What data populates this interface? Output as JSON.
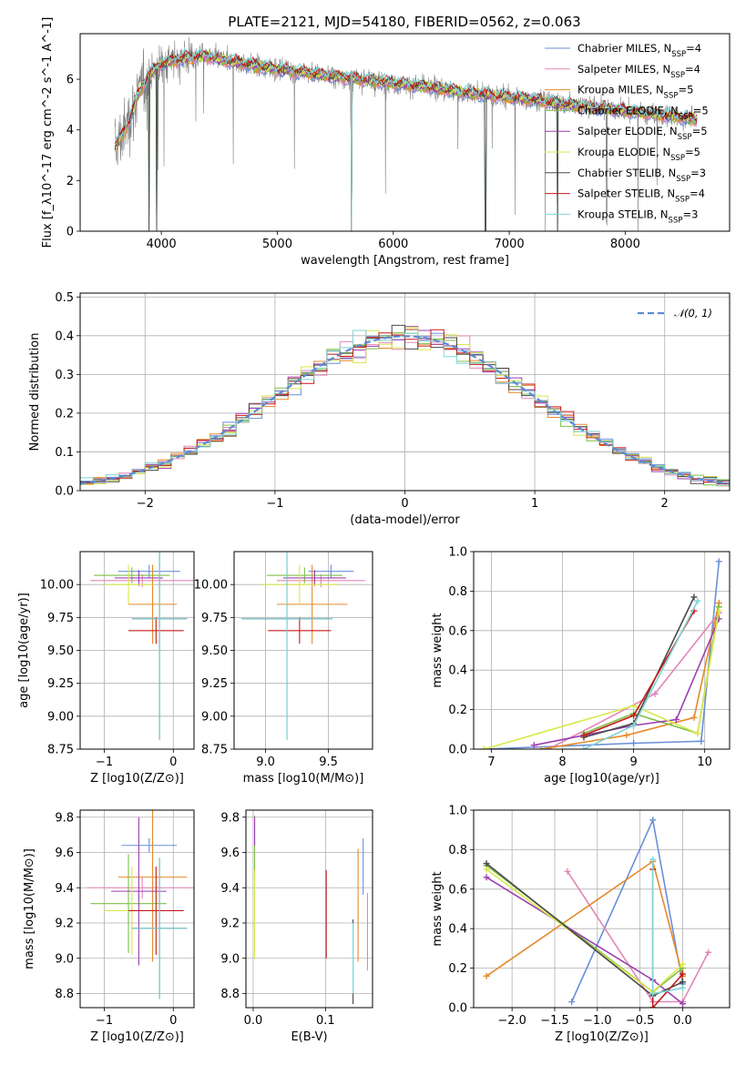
{
  "figure": {
    "title": "PLATE=2121, MJD=54180, FIBERID=0562, z=0.063"
  },
  "colors": {
    "grid": "#b0b0b0",
    "data": "#808080",
    "normal_line": "#5b8ad6"
  },
  "chart_data": [
    {
      "id": "spectrum",
      "type": "line",
      "title": "PLATE=2121, MJD=54180, FIBERID=0562, z=0.063",
      "xlabel": "wavelength [Angstrom, rest frame]",
      "ylabel": "Flux [f_λ10^-17 erg cm^-2 s^-1 A^-1]",
      "xlim": [
        3300,
        8900
      ],
      "ylim": [
        0,
        7.8
      ],
      "xticks": [
        4000,
        5000,
        6000,
        7000,
        8000
      ],
      "yticks": [
        0,
        2,
        4,
        6
      ],
      "grid": false,
      "legend_position": "top-right",
      "data_range": [
        3600,
        8620
      ],
      "continuum": [
        [
          3600,
          3.3
        ],
        [
          3700,
          4.1
        ],
        [
          3800,
          5.4
        ],
        [
          3900,
          6.2
        ],
        [
          4000,
          6.6
        ],
        [
          4200,
          6.85
        ],
        [
          4400,
          6.9
        ],
        [
          4600,
          6.7
        ],
        [
          4800,
          6.55
        ],
        [
          5000,
          6.4
        ],
        [
          5200,
          6.3
        ],
        [
          5500,
          6.1
        ],
        [
          5800,
          5.95
        ],
        [
          6000,
          5.85
        ],
        [
          6300,
          5.7
        ],
        [
          6600,
          5.5
        ],
        [
          6900,
          5.35
        ],
        [
          7200,
          5.2
        ],
        [
          7500,
          5.0
        ],
        [
          7800,
          4.85
        ],
        [
          8100,
          4.7
        ],
        [
          8400,
          4.55
        ],
        [
          8620,
          4.4
        ]
      ],
      "series": [
        {
          "name": "Chabrier MILES",
          "nssp": "4",
          "color": "#6a8fd8"
        },
        {
          "name": "Salpeter MILES",
          "nssp": "4",
          "color": "#e087b8"
        },
        {
          "name": "Kroupa MILES",
          "nssp": "5",
          "color": "#e58a2a"
        },
        {
          "name": "Chabrier ELODIE",
          "nssp": "5",
          "color": "#7fbf45"
        },
        {
          "name": "Salpeter ELODIE",
          "nssp": "5",
          "color": "#9b3fb0"
        },
        {
          "name": "Kroupa ELODIE",
          "nssp": "5",
          "color": "#d8e84a"
        },
        {
          "name": "Chabrier STELIB",
          "nssp": "3",
          "color": "#4a4a4a"
        },
        {
          "name": "Salpeter STELIB",
          "nssp": "4",
          "color": "#c81818"
        },
        {
          "name": "Kroupa STELIB",
          "nssp": "3",
          "color": "#7ed6d8"
        }
      ]
    },
    {
      "id": "residuals",
      "type": "histogram",
      "xlabel": "(data-model)/error",
      "ylabel": "Normed distribution",
      "xlim": [
        -2.5,
        2.5
      ],
      "ylim": [
        0,
        0.51
      ],
      "xticks": [
        -2,
        -1,
        0,
        1,
        2
      ],
      "yticks": [
        0.0,
        0.1,
        0.2,
        0.3,
        0.4,
        0.5
      ],
      "grid": true,
      "bin_width": 0.1,
      "legend_position": "top-right",
      "reference": {
        "name": "𝒩(0, 1)",
        "mean": 0,
        "sigma": 1,
        "style": "dashed"
      }
    },
    {
      "id": "age_vs_Z",
      "type": "errorbar",
      "xlabel": "Z [log10(Z/Z⊙)]",
      "ylabel": "age [log10(age/yr)]",
      "xlim": [
        -1.35,
        0.3
      ],
      "ylim": [
        8.75,
        10.25
      ],
      "xticks": [
        -1,
        0
      ],
      "yticks": [
        8.75,
        9.0,
        9.25,
        9.5,
        9.75,
        10.0
      ],
      "grid": true,
      "points": [
        {
          "x": -0.35,
          "xerr": 0.45,
          "y": 10.1,
          "yerr": 0.05
        },
        {
          "x": -0.45,
          "xerr": 0.75,
          "y": 10.03,
          "yerr": 0.05
        },
        {
          "x": -0.3,
          "xerr": 0.35,
          "y": 9.85,
          "yerr": 0.3
        },
        {
          "x": -0.6,
          "xerr": 0.55,
          "y": 10.07,
          "yerr": 0.06
        },
        {
          "x": -0.5,
          "xerr": 0.35,
          "y": 10.05,
          "yerr": 0.06
        },
        {
          "x": -0.65,
          "xerr": 0.35,
          "y": 10.0,
          "yerr": 0.15
        },
        {
          "x": -0.2,
          "xerr": 0.4,
          "y": 9.74,
          "yerr": 0.92
        },
        {
          "x": -0.25,
          "xerr": 0.4,
          "y": 9.65,
          "yerr": 0.1
        },
        {
          "x": -0.2,
          "xerr": 0.4,
          "y": 9.74,
          "yerr": 0.92
        }
      ]
    },
    {
      "id": "age_vs_mass",
      "type": "errorbar",
      "xlabel": "mass [log10(M/M⊙)]",
      "ylabel": "",
      "xlim": [
        8.75,
        9.85
      ],
      "ylim": [
        8.75,
        10.25
      ],
      "xticks": [
        9.0,
        9.5
      ],
      "yticks": [
        8.75,
        9.0,
        9.25,
        9.5,
        9.75,
        10.0
      ],
      "grid": true,
      "points": [
        {
          "x": 9.52,
          "xerr": 0.18,
          "y": 10.1,
          "yerr": 0.05
        },
        {
          "x": 9.44,
          "xerr": 0.35,
          "y": 10.03,
          "yerr": 0.05
        },
        {
          "x": 9.37,
          "xerr": 0.28,
          "y": 9.85,
          "yerr": 0.3
        },
        {
          "x": 9.31,
          "xerr": 0.3,
          "y": 10.07,
          "yerr": 0.06
        },
        {
          "x": 9.39,
          "xerr": 0.25,
          "y": 10.05,
          "yerr": 0.06
        },
        {
          "x": 9.27,
          "xerr": 0.3,
          "y": 10.0,
          "yerr": 0.15
        },
        {
          "x": 9.17,
          "xerr": 0.36,
          "y": 9.74,
          "yerr": 0.92
        },
        {
          "x": 9.27,
          "xerr": 0.25,
          "y": 9.65,
          "yerr": 0.1
        },
        {
          "x": 9.17,
          "xerr": 0.36,
          "y": 9.74,
          "yerr": 0.92
        }
      ]
    },
    {
      "id": "weight_vs_age",
      "type": "line",
      "xlabel": "age [log10(age/yr)]",
      "ylabel": "mass weight",
      "xlim": [
        6.75,
        10.35
      ],
      "ylim": [
        0,
        1.0
      ],
      "xticks": [
        7,
        8,
        9,
        10
      ],
      "yticks": [
        0.0,
        0.2,
        0.4,
        0.6,
        0.8,
        1.0
      ],
      "grid": true,
      "lines": [
        {
          "points": [
            [
              6.9,
              0.0
            ],
            [
              9.0,
              0.03
            ],
            [
              9.95,
              0.04
            ],
            [
              10.2,
              0.95
            ]
          ]
        },
        {
          "points": [
            [
              7.8,
              0.0
            ],
            [
              9.3,
              0.28
            ],
            [
              10.2,
              0.69
            ]
          ]
        },
        {
          "points": [
            [
              7.7,
              0.0
            ],
            [
              8.9,
              0.07
            ],
            [
              9.85,
              0.16
            ],
            [
              10.2,
              0.74
            ]
          ]
        },
        {
          "points": [
            [
              8.3,
              0.08
            ],
            [
              9.0,
              0.18
            ],
            [
              9.9,
              0.08
            ],
            [
              10.2,
              0.72
            ]
          ]
        },
        {
          "points": [
            [
              7.6,
              0.02
            ],
            [
              9.0,
              0.12
            ],
            [
              9.6,
              0.15
            ],
            [
              10.2,
              0.66
            ]
          ]
        },
        {
          "points": [
            [
              6.9,
              0.0
            ],
            [
              9.0,
              0.22
            ],
            [
              9.9,
              0.08
            ],
            [
              10.2,
              0.7
            ]
          ]
        },
        {
          "points": [
            [
              8.3,
              0.06
            ],
            [
              9.0,
              0.13
            ],
            [
              9.85,
              0.77
            ]
          ]
        },
        {
          "points": [
            [
              8.3,
              0.07
            ],
            [
              9.0,
              0.17
            ],
            [
              9.85,
              0.7
            ]
          ]
        },
        {
          "points": [
            [
              8.3,
              0.0
            ],
            [
              9.0,
              0.12
            ],
            [
              9.9,
              0.75
            ]
          ]
        }
      ]
    },
    {
      "id": "mass_vs_Z",
      "type": "errorbar",
      "xlabel": "Z [log10(Z/Z⊙)]",
      "ylabel": "mass [log10(M/M⊙)]",
      "xlim": [
        -1.35,
        0.3
      ],
      "ylim": [
        8.72,
        9.84
      ],
      "xticks": [
        -1,
        0
      ],
      "yticks": [
        8.8,
        9.0,
        9.2,
        9.4,
        9.6,
        9.8
      ],
      "grid": true,
      "points": [
        {
          "x": -0.35,
          "xerr": 0.4,
          "y": 9.64,
          "yerr": 0.04
        },
        {
          "x": -0.45,
          "xerr": 0.8,
          "y": 9.4,
          "yerr": 0.06
        },
        {
          "x": -0.3,
          "xerr": 0.5,
          "y": 9.46,
          "yerr": 0.48
        },
        {
          "x": -0.65,
          "xerr": 0.55,
          "y": 9.31,
          "yerr": 0.28
        },
        {
          "x": -0.5,
          "xerr": 0.4,
          "y": 9.38,
          "yerr": 0.42
        },
        {
          "x": -0.6,
          "xerr": 0.4,
          "y": 9.27,
          "yerr": 0.25
        },
        {
          "x": -0.2,
          "xerr": 0.4,
          "y": 9.17,
          "yerr": 0.4
        },
        {
          "x": -0.25,
          "xerr": 0.4,
          "y": 9.27,
          "yerr": 0.25
        },
        {
          "x": -0.2,
          "xerr": 0.4,
          "y": 9.17,
          "yerr": 0.4
        }
      ]
    },
    {
      "id": "mass_vs_EBV",
      "type": "errorbar",
      "xlabel": "E(B-V)",
      "ylabel": "",
      "xlim": [
        -0.01,
        0.165
      ],
      "ylim": [
        8.72,
        9.84
      ],
      "xticks": [
        0.0,
        0.1
      ],
      "yticks": [
        8.8,
        9.0,
        9.2,
        9.4,
        9.6,
        9.8
      ],
      "grid": true,
      "points": [
        {
          "x": 0.152,
          "y": 9.52,
          "yerr": 0.16
        },
        {
          "x": 0.158,
          "y": 9.15,
          "yerr": 0.22
        },
        {
          "x": 0.145,
          "y": 9.3,
          "yerr": 0.32
        },
        {
          "x": 0.002,
          "y": 9.63,
          "yerr": 0.18
        },
        {
          "x": 0.002,
          "y": 9.72,
          "yerr": 0.08
        },
        {
          "x": 0.002,
          "y": 9.25,
          "yerr": 0.25
        },
        {
          "x": 0.138,
          "y": 8.98,
          "yerr": 0.24
        },
        {
          "x": 0.101,
          "y": 9.25,
          "yerr": 0.25
        },
        {
          "x": 0.138,
          "y": 9.0,
          "yerr": 0.2
        }
      ]
    },
    {
      "id": "weight_vs_Z",
      "type": "line",
      "xlabel": "Z [log10(Z/Z⊙)]",
      "ylabel": "mass weight",
      "xlim": [
        -2.45,
        0.55
      ],
      "ylim": [
        0,
        1.0
      ],
      "xticks": [
        -2.0,
        -1.5,
        -1.0,
        -0.5,
        0.0
      ],
      "yticks": [
        0.0,
        0.2,
        0.4,
        0.6,
        0.8,
        1.0
      ],
      "grid": true,
      "lines": [
        {
          "points": [
            [
              -1.3,
              0.03
            ],
            [
              -0.35,
              0.95
            ],
            [
              0.0,
              0.12
            ]
          ]
        },
        {
          "points": [
            [
              -1.35,
              0.69
            ],
            [
              -0.35,
              0.03
            ],
            [
              0.0,
              0.03
            ],
            [
              0.3,
              0.28
            ]
          ]
        },
        {
          "points": [
            [
              -2.3,
              0.16
            ],
            [
              -0.35,
              0.74
            ],
            [
              0.0,
              0.16
            ]
          ]
        },
        {
          "points": [
            [
              -2.3,
              0.72
            ],
            [
              -0.35,
              0.08
            ],
            [
              0.0,
              0.2
            ]
          ]
        },
        {
          "points": [
            [
              -2.3,
              0.66
            ],
            [
              -0.35,
              0.14
            ],
            [
              0.0,
              0.02
            ]
          ]
        },
        {
          "points": [
            [
              -2.3,
              0.7
            ],
            [
              -0.35,
              0.08
            ],
            [
              0.0,
              0.22
            ]
          ]
        },
        {
          "points": [
            [
              -2.3,
              0.73
            ],
            [
              -0.35,
              0.06
            ],
            [
              0.0,
              0.13
            ]
          ]
        },
        {
          "points": [
            [
              -0.35,
              0.7
            ],
            [
              -0.35,
              0.0
            ],
            [
              0.0,
              0.17
            ]
          ]
        },
        {
          "points": [
            [
              -0.35,
              0.75
            ],
            [
              -0.35,
              0.07
            ],
            [
              0.0,
              0.1
            ]
          ]
        }
      ]
    }
  ]
}
